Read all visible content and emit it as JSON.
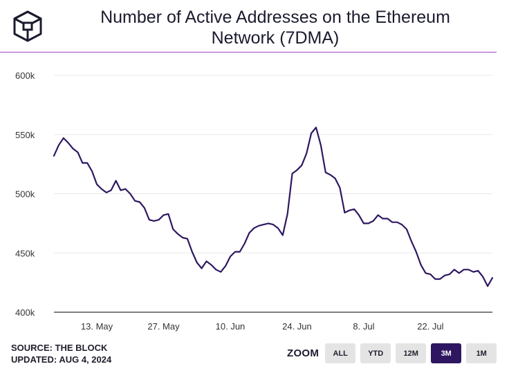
{
  "header": {
    "title_line1": "Number of Active Addresses on the Ethereum",
    "title_line2": "Network (7DMA)",
    "logo_icon": "the-block-cube-icon"
  },
  "colors": {
    "accent_rule": "#9b45c9",
    "line": "#2e1760",
    "active_button": "#2e1760"
  },
  "footer": {
    "source": "SOURCE: THE BLOCK",
    "updated": "UPDATED: AUG 4, 2024"
  },
  "zoom": {
    "label": "ZOOM",
    "buttons": [
      {
        "label": "ALL",
        "active": false
      },
      {
        "label": "YTD",
        "active": false
      },
      {
        "label": "12M",
        "active": false
      },
      {
        "label": "3M",
        "active": true
      },
      {
        "label": "1M",
        "active": false
      }
    ]
  },
  "chart_data": {
    "type": "line",
    "title": "Number of Active Addresses on the Ethereum Network (7DMA)",
    "xlabel": "",
    "ylabel": "",
    "ylim": [
      400000,
      600000
    ],
    "y_ticks": [
      {
        "value": 400000,
        "label": "400k"
      },
      {
        "value": 450000,
        "label": "450k"
      },
      {
        "value": 500000,
        "label": "500k"
      },
      {
        "value": 550000,
        "label": "550k"
      },
      {
        "value": 600000,
        "label": "600k"
      }
    ],
    "x_range": [
      "2024-05-04",
      "2024-08-04"
    ],
    "x_ticks": [
      {
        "date": "2024-05-13",
        "label": "13. May"
      },
      {
        "date": "2024-05-27",
        "label": "27. May"
      },
      {
        "date": "2024-06-10",
        "label": "10. Jun"
      },
      {
        "date": "2024-06-24",
        "label": "24. Jun"
      },
      {
        "date": "2024-07-08",
        "label": "8. Jul"
      },
      {
        "date": "2024-07-22",
        "label": "22. Jul"
      }
    ],
    "grid": true,
    "series": [
      {
        "values": [
          [
            "2024-05-04",
            532000
          ],
          [
            "2024-05-05",
            541000
          ],
          [
            "2024-05-06",
            547000
          ],
          [
            "2024-05-07",
            543000
          ],
          [
            "2024-05-08",
            538000
          ],
          [
            "2024-05-09",
            535000
          ],
          [
            "2024-05-10",
            526000
          ],
          [
            "2024-05-11",
            526000
          ],
          [
            "2024-05-12",
            519000
          ],
          [
            "2024-05-13",
            508000
          ],
          [
            "2024-05-14",
            504000
          ],
          [
            "2024-05-15",
            501000
          ],
          [
            "2024-05-16",
            503000
          ],
          [
            "2024-05-17",
            511000
          ],
          [
            "2024-05-18",
            503000
          ],
          [
            "2024-05-19",
            504000
          ],
          [
            "2024-05-20",
            500000
          ],
          [
            "2024-05-21",
            494000
          ],
          [
            "2024-05-22",
            493000
          ],
          [
            "2024-05-23",
            488000
          ],
          [
            "2024-05-24",
            478000
          ],
          [
            "2024-05-25",
            477000
          ],
          [
            "2024-05-26",
            478000
          ],
          [
            "2024-05-27",
            482000
          ],
          [
            "2024-05-28",
            483000
          ],
          [
            "2024-05-29",
            470000
          ],
          [
            "2024-05-30",
            466000
          ],
          [
            "2024-05-31",
            463000
          ],
          [
            "2024-06-01",
            462000
          ],
          [
            "2024-06-02",
            451000
          ],
          [
            "2024-06-03",
            442000
          ],
          [
            "2024-06-04",
            437000
          ],
          [
            "2024-06-05",
            443000
          ],
          [
            "2024-06-06",
            440000
          ],
          [
            "2024-06-07",
            436000
          ],
          [
            "2024-06-08",
            434000
          ],
          [
            "2024-06-09",
            439000
          ],
          [
            "2024-06-10",
            447000
          ],
          [
            "2024-06-11",
            451000
          ],
          [
            "2024-06-12",
            451000
          ],
          [
            "2024-06-13",
            458000
          ],
          [
            "2024-06-14",
            467000
          ],
          [
            "2024-06-15",
            471000
          ],
          [
            "2024-06-16",
            473000
          ],
          [
            "2024-06-17",
            474000
          ],
          [
            "2024-06-18",
            475000
          ],
          [
            "2024-06-19",
            474000
          ],
          [
            "2024-06-20",
            471000
          ],
          [
            "2024-06-21",
            465000
          ],
          [
            "2024-06-22",
            483000
          ],
          [
            "2024-06-23",
            517000
          ],
          [
            "2024-06-24",
            520000
          ],
          [
            "2024-06-25",
            524000
          ],
          [
            "2024-06-26",
            534000
          ],
          [
            "2024-06-27",
            551000
          ],
          [
            "2024-06-28",
            556000
          ],
          [
            "2024-06-29",
            541000
          ],
          [
            "2024-06-30",
            518000
          ],
          [
            "2024-07-01",
            516000
          ],
          [
            "2024-07-02",
            513000
          ],
          [
            "2024-07-03",
            505000
          ],
          [
            "2024-07-04",
            484000
          ],
          [
            "2024-07-05",
            486000
          ],
          [
            "2024-07-06",
            487000
          ],
          [
            "2024-07-07",
            482000
          ],
          [
            "2024-07-08",
            475000
          ],
          [
            "2024-07-09",
            475000
          ],
          [
            "2024-07-10",
            477000
          ],
          [
            "2024-07-11",
            482000
          ],
          [
            "2024-07-12",
            479000
          ],
          [
            "2024-07-13",
            479000
          ],
          [
            "2024-07-14",
            476000
          ],
          [
            "2024-07-15",
            476000
          ],
          [
            "2024-07-16",
            474000
          ],
          [
            "2024-07-17",
            470000
          ],
          [
            "2024-07-18",
            460000
          ],
          [
            "2024-07-19",
            451000
          ],
          [
            "2024-07-20",
            440000
          ],
          [
            "2024-07-21",
            433000
          ],
          [
            "2024-07-22",
            432000
          ],
          [
            "2024-07-23",
            428000
          ],
          [
            "2024-07-24",
            428000
          ],
          [
            "2024-07-25",
            431000
          ],
          [
            "2024-07-26",
            432000
          ],
          [
            "2024-07-27",
            436000
          ],
          [
            "2024-07-28",
            433000
          ],
          [
            "2024-07-29",
            436000
          ],
          [
            "2024-07-30",
            436000
          ],
          [
            "2024-07-31",
            434000
          ],
          [
            "2024-08-01",
            435000
          ],
          [
            "2024-08-02",
            430000
          ],
          [
            "2024-08-03",
            422000
          ],
          [
            "2024-08-04",
            429000
          ]
        ]
      }
    ]
  }
}
